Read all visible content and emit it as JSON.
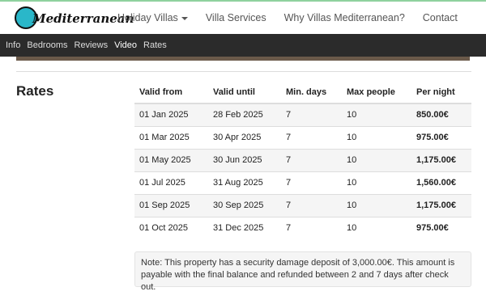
{
  "header": {
    "logo": "Mediterranean",
    "nav": [
      "Holiday Villas",
      "Villa Services",
      "Why Villas Mediterranean?",
      "Contact"
    ]
  },
  "tabs": [
    "Info",
    "Bedrooms",
    "Reviews",
    "Video",
    "Rates"
  ],
  "rates": {
    "title": "Rates",
    "table": {
      "columns": [
        "Valid from",
        "Valid until",
        "Min. days",
        "Max people",
        "Per night"
      ],
      "rows": [
        [
          "01 Jan 2025",
          "28 Feb 2025",
          "7",
          "10",
          "850.00€"
        ],
        [
          "01 Mar 2025",
          "30 Apr 2025",
          "7",
          "10",
          "975.00€"
        ],
        [
          "01 May 2025",
          "30 Jun 2025",
          "7",
          "10",
          "1,175.00€"
        ],
        [
          "01 Jul 2025",
          "31 Aug 2025",
          "7",
          "10",
          "1,560.00€"
        ],
        [
          "01 Sep 2025",
          "30 Sep 2025",
          "7",
          "10",
          "1,175.00€"
        ],
        [
          "01 Oct 2025",
          "31 Dec 2025",
          "7",
          "10",
          "975.00€"
        ]
      ]
    },
    "note": "Note: This property has a security damage deposit of 3,000.00€. This amount is payable with the final balance and refunded between 2 and 7 days after check out."
  }
}
